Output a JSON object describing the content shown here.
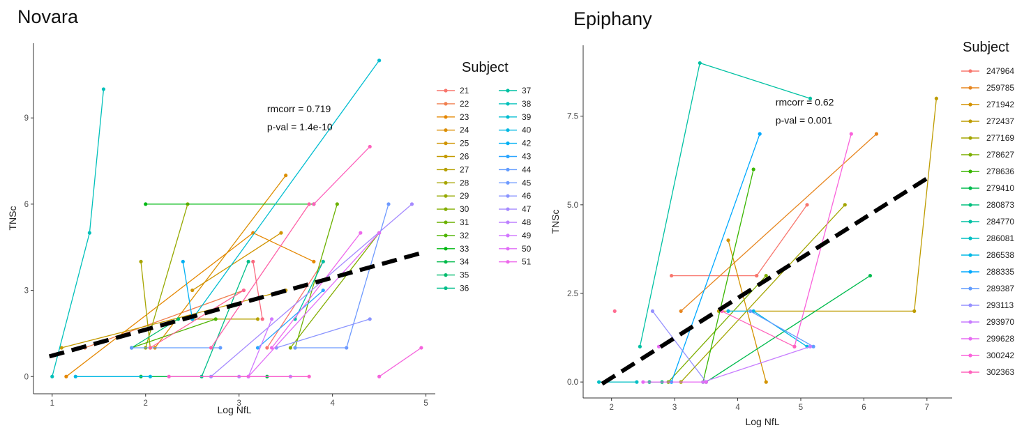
{
  "chart_data": [
    {
      "type": "line",
      "title": "Novara",
      "xlabel": "Log NfL",
      "ylabel": "TNSc",
      "xlim": [
        0.8,
        5.1
      ],
      "ylim": [
        -0.6,
        11.6
      ],
      "xticks": [
        1,
        2,
        3,
        4,
        5
      ],
      "yticks": [
        0,
        3,
        6,
        9
      ],
      "ytick_labels": [
        "0",
        "3",
        "6",
        "9"
      ],
      "annotations": [
        "rmcorr = 0.719",
        "p-val = 1.4e-10"
      ],
      "annotation_pos": [
        3.3,
        9.2
      ],
      "trend": {
        "x": [
          0.97,
          4.95
        ],
        "y": [
          0.7,
          4.3
        ]
      },
      "legend_title": "Subject",
      "legend_columns": 2,
      "series": [
        {
          "name": "21",
          "color": "#F8766D",
          "x": [
            3.3,
            3.9
          ],
          "y": [
            1.0,
            4.0
          ]
        },
        {
          "name": "22",
          "color": "#F07F4F",
          "x": [
            1.35,
            3.05
          ],
          "y": [
            1.0,
            3.0
          ]
        },
        {
          "name": "23",
          "color": "#E58700",
          "x": [
            1.15,
            3.15,
            3.8
          ],
          "y": [
            0.0,
            5.0,
            4.0
          ]
        },
        {
          "name": "24",
          "color": "#DC8E00",
          "x": [
            2.1,
            3.5
          ],
          "y": [
            1.0,
            7.0
          ]
        },
        {
          "name": "25",
          "color": "#D09400",
          "x": [
            2.5,
            3.45
          ],
          "y": [
            3.0,
            5.0
          ]
        },
        {
          "name": "26",
          "color": "#C49A00",
          "x": [
            1.1,
            3.5
          ],
          "y": [
            1.0,
            3.0
          ]
        },
        {
          "name": "27",
          "color": "#B6A000",
          "x": [
            2.5,
            3.2
          ],
          "y": [
            2.0,
            2.0
          ]
        },
        {
          "name": "28",
          "color": "#A7A500",
          "x": [
            1.95,
            2.05
          ],
          "y": [
            4.0,
            1.0
          ]
        },
        {
          "name": "29",
          "color": "#96A900",
          "x": [
            2.0,
            2.45
          ],
          "y": [
            1.0,
            6.0
          ]
        },
        {
          "name": "30",
          "color": "#83AD00",
          "x": [
            3.55,
            4.5
          ],
          "y": [
            1.0,
            5.0
          ]
        },
        {
          "name": "31",
          "color": "#6BB100",
          "x": [
            3.6,
            4.05
          ],
          "y": [
            1.0,
            6.0
          ]
        },
        {
          "name": "32",
          "color": "#4DB400",
          "x": [
            1.85,
            2.75
          ],
          "y": [
            1.0,
            2.0
          ]
        },
        {
          "name": "33",
          "color": "#00B813",
          "x": [
            2.0,
            3.8
          ],
          "y": [
            6.0,
            6.0
          ]
        },
        {
          "name": "34",
          "color": "#00BA4A",
          "x": [
            1.95,
            3.3
          ],
          "y": [
            0.0,
            0.0
          ]
        },
        {
          "name": "35",
          "color": "#00BC6D",
          "x": [
            1.85,
            2.35
          ],
          "y": [
            1.0,
            2.0
          ]
        },
        {
          "name": "36",
          "color": "#00BE89",
          "x": [
            2.6,
            3.1
          ],
          "y": [
            0.0,
            4.0
          ]
        },
        {
          "name": "37",
          "color": "#00C0A3",
          "x": [
            3.6,
            3.9
          ],
          "y": [
            2.0,
            4.0
          ]
        },
        {
          "name": "38",
          "color": "#00C0BA",
          "x": [
            1.0,
            1.4,
            1.55
          ],
          "y": [
            0.0,
            5.0,
            10.0
          ]
        },
        {
          "name": "39",
          "color": "#00BDD0",
          "x": [
            2.5,
            4.5
          ],
          "y": [
            2.0,
            11.0
          ]
        },
        {
          "name": "40",
          "color": "#00B8E3",
          "x": [
            1.25,
            2.05
          ],
          "y": [
            0.0,
            0.0
          ]
        },
        {
          "name": "42",
          "color": "#00B0F3",
          "x": [
            2.4,
            2.5
          ],
          "y": [
            4.0,
            2.0
          ]
        },
        {
          "name": "43",
          "color": "#2CA6FF",
          "x": [
            3.2,
            3.9
          ],
          "y": [
            1.0,
            3.0
          ]
        },
        {
          "name": "44",
          "color": "#619CFF",
          "x": [
            1.85,
            2.8
          ],
          "y": [
            1.0,
            1.0
          ]
        },
        {
          "name": "45",
          "color": "#6E9AFF",
          "x": [
            3.6,
            4.15,
            4.6
          ],
          "y": [
            1.0,
            1.0,
            6.0
          ]
        },
        {
          "name": "46",
          "color": "#8A94FF",
          "x": [
            3.4,
            4.4
          ],
          "y": [
            1.0,
            2.0
          ]
        },
        {
          "name": "47",
          "color": "#A58AFF",
          "x": [
            2.7,
            4.85
          ],
          "y": [
            0.0,
            6.0
          ]
        },
        {
          "name": "48",
          "color": "#BD81FF",
          "x": [
            3.0,
            3.55
          ],
          "y": [
            0.0,
            0.0
          ]
        },
        {
          "name": "49",
          "color": "#D177FF",
          "x": [
            3.1,
            3.35
          ],
          "y": [
            0.0,
            2.0
          ]
        },
        {
          "name": "50",
          "color": "#E16EF7",
          "x": [
            3.1,
            4.5
          ],
          "y": [
            0.0,
            5.0
          ]
        },
        {
          "name": "51",
          "color": "#ED68EB",
          "x": [
            3.35,
            4.3
          ],
          "y": [
            1.0,
            5.0
          ]
        },
        {
          "name": "",
          "color": "#F564DD",
          "x": [
            4.5,
            4.95
          ],
          "y": [
            0.0,
            1.0
          ]
        },
        {
          "name": "",
          "color": "#FA62CD",
          "x": [
            2.25,
            3.75
          ],
          "y": [
            0.0,
            0.0
          ]
        },
        {
          "name": "",
          "color": "#FD61BC",
          "x": [
            3.8,
            4.4
          ],
          "y": [
            6.0,
            8.0
          ]
        },
        {
          "name": "",
          "color": "#FE62A8",
          "x": [
            2.7,
            3.75
          ],
          "y": [
            1.0,
            6.0
          ]
        },
        {
          "name": "",
          "color": "#FD6594",
          "x": [
            2.05,
            3.05
          ],
          "y": [
            1.0,
            3.0
          ]
        },
        {
          "name": "",
          "color": "#F96A7F",
          "x": [
            3.15,
            3.25
          ],
          "y": [
            4.0,
            2.0
          ]
        }
      ]
    },
    {
      "type": "line",
      "title": "Epiphany",
      "xlabel": "Log NfL",
      "ylabel": "TNSc",
      "xlim": [
        1.55,
        7.4
      ],
      "ylim": [
        -0.45,
        9.5
      ],
      "xticks": [
        2,
        3,
        4,
        5,
        6,
        7
      ],
      "yticks": [
        0,
        2.5,
        5,
        7.5
      ],
      "ytick_labels": [
        "0.0",
        "2.5",
        "5.0",
        "7.5"
      ],
      "annotations": [
        "rmcorr = 0.62",
        "p-val = 0.001"
      ],
      "annotation_pos": [
        4.6,
        7.8
      ],
      "trend": {
        "x": [
          1.85,
          7.05
        ],
        "y": [
          -0.05,
          5.8
        ]
      },
      "legend_title": "Subject",
      "legend_columns": 1,
      "series": [
        {
          "name": "247964",
          "color": "#F8766D",
          "x": [
            2.95,
            4.3
          ],
          "y": [
            3.0,
            3.0
          ]
        },
        {
          "name": "259785",
          "color": "#E7851E",
          "x": [
            3.1,
            6.2
          ],
          "y": [
            2.0,
            7.0
          ]
        },
        {
          "name": "271942",
          "color": "#D39200",
          "x": [
            3.85,
            4.45
          ],
          "y": [
            4.0,
            0.0
          ]
        },
        {
          "name": "272437",
          "color": "#BE9C00",
          "x": [
            3.7,
            6.8,
            7.15
          ],
          "y": [
            2.0,
            2.0,
            8.0
          ]
        },
        {
          "name": "277169",
          "color": "#A3A500",
          "x": [
            3.1,
            5.7
          ],
          "y": [
            0.0,
            5.0
          ]
        },
        {
          "name": "278627",
          "color": "#7CAE00",
          "x": [
            2.9,
            4.45
          ],
          "y": [
            0.0,
            3.0
          ]
        },
        {
          "name": "278636",
          "color": "#39B600",
          "x": [
            3.45,
            4.25
          ],
          "y": [
            0.0,
            6.0
          ]
        },
        {
          "name": "279410",
          "color": "#00BB4E",
          "x": [
            3.5,
            6.1
          ],
          "y": [
            0.0,
            3.0
          ]
        },
        {
          "name": "280873",
          "color": "#00BF7D",
          "x": [
            2.6,
            2.8
          ],
          "y": [
            0.0,
            0.0
          ]
        },
        {
          "name": "284770",
          "color": "#00C1A3",
          "x": [
            2.45,
            3.4,
            5.15
          ],
          "y": [
            1.0,
            9.0,
            8.0
          ]
        },
        {
          "name": "286081",
          "color": "#00BFC4",
          "x": [
            1.8,
            2.4
          ],
          "y": [
            0.0,
            0.0
          ]
        },
        {
          "name": "286538",
          "color": "#00B8E5",
          "x": [
            3.85,
            4.25,
            5.1
          ],
          "y": [
            2.0,
            2.0,
            1.0
          ]
        },
        {
          "name": "288335",
          "color": "#00A9FF",
          "x": [
            2.95,
            4.35
          ],
          "y": [
            0.0,
            7.0
          ]
        },
        {
          "name": "289387",
          "color": "#619CFF",
          "x": [
            4.2,
            5.2
          ],
          "y": [
            2.0,
            1.0
          ]
        },
        {
          "name": "293113",
          "color": "#9590FF",
          "x": [
            2.65,
            3.5
          ],
          "y": [
            2.0,
            0.0
          ]
        },
        {
          "name": "293970",
          "color": "#C77CFF",
          "x": [
            3.45,
            5.15
          ],
          "y": [
            0.0,
            1.0
          ]
        },
        {
          "name": "299628",
          "color": "#E76BF3",
          "x": [
            2.5,
            3.5
          ],
          "y": [
            0.0,
            0.0
          ]
        },
        {
          "name": "300242",
          "color": "#FA62DB",
          "x": [
            4.9,
            5.8
          ],
          "y": [
            1.0,
            7.0
          ]
        },
        {
          "name": "302363",
          "color": "#FF62BC",
          "x": [
            3.75,
            4.9
          ],
          "y": [
            2.0,
            1.0
          ]
        },
        {
          "name": "",
          "color": "#FF6C91",
          "x": [
            2.05
          ],
          "y": [
            2.0
          ]
        },
        {
          "name": "",
          "color": "#F8766D",
          "x": [
            4.3,
            5.1
          ],
          "y": [
            3.0,
            5.0
          ]
        },
        {
          "name": "",
          "color": "#E76BF3",
          "x": [
            2.75
          ],
          "y": [
            1.0
          ]
        }
      ]
    }
  ]
}
